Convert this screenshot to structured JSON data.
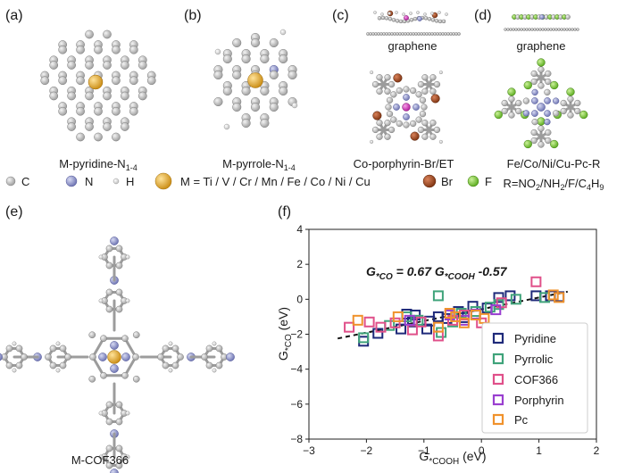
{
  "panels": {
    "a": {
      "letter": "(a)",
      "caption_main": "M-pyridine-N",
      "caption_sub": "1-4"
    },
    "b": {
      "letter": "(b)",
      "caption_main": "M-pyrrole-N",
      "caption_sub": "1-4"
    },
    "c": {
      "letter": "(c)",
      "top_label": "graphene",
      "caption": "Co-porphyrin-Br/ET"
    },
    "d": {
      "letter": "(d)",
      "top_label": "graphene",
      "caption": "Fe/Co/Ni/Cu-Pc-R"
    },
    "e": {
      "letter": "(e)",
      "caption": "M-COF366"
    },
    "f": {
      "letter": "(f)"
    }
  },
  "r_line": {
    "p1": "R=NO",
    "s1": "2",
    "p2": "/NH",
    "s2": "2",
    "p3": "/F/C",
    "s3": "4",
    "p4": "H",
    "s4": "9"
  },
  "atom_legend": [
    {
      "symbol": "C",
      "color": "#b5b5b5"
    },
    {
      "symbol": "N",
      "color": "#8f95cc"
    },
    {
      "symbol": "H",
      "color": "#d4d4d4"
    },
    {
      "symbol": "M = Ti / V / Cr / Mn / Fe / Co / Ni / Cu",
      "color": "#e0a020"
    },
    {
      "symbol": "Br",
      "color": "#a34a1c"
    },
    {
      "symbol": "F",
      "color": "#7ccc2c"
    }
  ],
  "equation": {
    "g1": "G",
    "s1": "*CO",
    "mid": " = 0.67 G",
    "s2": "*COOH",
    "tail": " -0.57"
  },
  "chart_data": {
    "type": "scatter",
    "xlabel": {
      "base": "G",
      "sub": "*COOH",
      "unit": " (eV)"
    },
    "ylabel": {
      "base": "G",
      "sub": "*CO",
      "unit": " (eV)"
    },
    "xlim": [
      -3,
      2
    ],
    "ylim": [
      -8,
      4
    ],
    "xticks": [
      -3,
      -2,
      -1,
      0,
      1,
      2
    ],
    "yticks": [
      -8,
      -6,
      -4,
      -2,
      0,
      2,
      4
    ],
    "xtick_labels": [
      "−3",
      "−2",
      "−1",
      "0",
      "1",
      "2"
    ],
    "ytick_labels": [
      "−8",
      "−6",
      "−4",
      "−2",
      "0",
      "2",
      "4"
    ],
    "fit": {
      "slope": 0.67,
      "intercept": -0.57,
      "x_range": [
        -2.5,
        1.5
      ]
    },
    "series": [
      {
        "name": "Pyridine",
        "color": "#1f2a7a",
        "points": [
          [
            -2.05,
            -2.4
          ],
          [
            -1.8,
            -1.95
          ],
          [
            -1.4,
            -1.7
          ],
          [
            -1.3,
            -0.85
          ],
          [
            -1.2,
            -1.3
          ],
          [
            -1.15,
            -0.9
          ],
          [
            -0.95,
            -1.7
          ],
          [
            -0.9,
            -1.25
          ],
          [
            -0.75,
            -1.0
          ],
          [
            -0.6,
            -1.1
          ],
          [
            -0.4,
            -0.7
          ],
          [
            -0.3,
            -1.05
          ],
          [
            -0.15,
            -0.4
          ],
          [
            0.1,
            -0.5
          ],
          [
            0.3,
            0.1
          ],
          [
            0.5,
            0.2
          ],
          [
            0.95,
            0.2
          ],
          [
            1.2,
            0.2
          ],
          [
            1.35,
            0.15
          ]
        ]
      },
      {
        "name": "Pyrrolic",
        "color": "#3fa37a",
        "points": [
          [
            -2.05,
            -2.2
          ],
          [
            -1.6,
            -1.5
          ],
          [
            -1.3,
            -1.0
          ],
          [
            -1.1,
            -1.2
          ],
          [
            -0.75,
            0.2
          ],
          [
            -0.7,
            -1.9
          ],
          [
            -0.5,
            -1.3
          ],
          [
            -0.35,
            -0.8
          ],
          [
            -0.1,
            -0.7
          ],
          [
            0.15,
            -0.45
          ],
          [
            0.3,
            -0.3
          ],
          [
            0.6,
            0.0
          ],
          [
            1.1,
            0.1
          ]
        ]
      },
      {
        "name": "COF366",
        "color": "#e0508a",
        "points": [
          [
            -2.3,
            -1.6
          ],
          [
            -1.95,
            -1.3
          ],
          [
            -1.75,
            -1.6
          ],
          [
            -1.5,
            -1.35
          ],
          [
            -1.2,
            -1.75
          ],
          [
            -1.05,
            -1.3
          ],
          [
            -0.75,
            -2.1
          ],
          [
            -0.5,
            -1.2
          ],
          [
            -0.3,
            -0.9
          ],
          [
            0.0,
            -1.35
          ],
          [
            0.35,
            -0.2
          ],
          [
            0.95,
            1.0
          ]
        ]
      },
      {
        "name": "Porphyrin",
        "color": "#9a3fd0",
        "points": [
          [
            -1.25,
            -1.2
          ],
          [
            -0.55,
            -0.9
          ],
          [
            -0.3,
            -1.2
          ],
          [
            -0.1,
            -0.85
          ],
          [
            0.25,
            -0.6
          ]
        ]
      },
      {
        "name": "Pc",
        "color": "#f0922c",
        "points": [
          [
            -2.15,
            -1.2
          ],
          [
            -1.45,
            -1.0
          ],
          [
            -0.75,
            -1.6
          ],
          [
            -0.55,
            -0.8
          ],
          [
            -0.45,
            -1.0
          ],
          [
            -0.3,
            -1.35
          ],
          [
            -0.1,
            -0.9
          ],
          [
            0.05,
            -1.1
          ],
          [
            1.25,
            0.25
          ],
          [
            1.35,
            0.1
          ]
        ]
      }
    ]
  }
}
